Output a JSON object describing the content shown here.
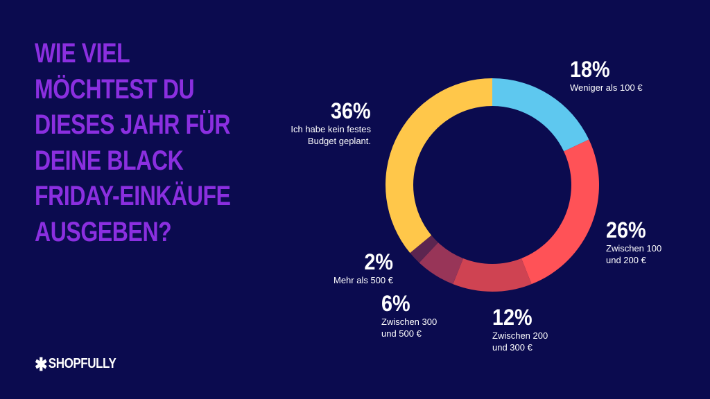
{
  "title_lines": [
    "WIE VIEL",
    "MÖCHTEST DU",
    "DIESES JAHR FÜR",
    "DEINE BLACK",
    "FRIDAY-EINKÄUFE",
    "AUSGEBEN?"
  ],
  "brand": {
    "logo_text": "SHOPFULLY",
    "icon": "asterisk-icon"
  },
  "colors": {
    "background": "#0b0b4f",
    "title": "#8b2fe0"
  },
  "chart_data": {
    "type": "pie",
    "donut": true,
    "title": "WIE VIEL MÖCHTEST DU DIESES JAHR FÜR DEINE BLACK FRIDAY-EINKÄUFE AUSGEBEN?",
    "slices": [
      {
        "label": "Weniger als 100 €",
        "value": 18,
        "value_label": "18%",
        "color": "#5ec8ef"
      },
      {
        "label": "Zwischen 100\nund 200 €",
        "value": 26,
        "value_label": "26%",
        "color": "#ff5257"
      },
      {
        "label": "Zwischen 200\nund 300 €",
        "value": 12,
        "value_label": "12%",
        "color": "#cf4352"
      },
      {
        "label": "Zwischen 300\nund 500 €",
        "value": 6,
        "value_label": "6%",
        "color": "#983558"
      },
      {
        "label": "Mehr als 500 €",
        "value": 2,
        "value_label": "2%",
        "color": "#5c2550"
      },
      {
        "label": "Ich habe kein festes\nBudget geplant.",
        "value": 36,
        "value_label": "36%",
        "color": "#ffc74a"
      }
    ]
  }
}
